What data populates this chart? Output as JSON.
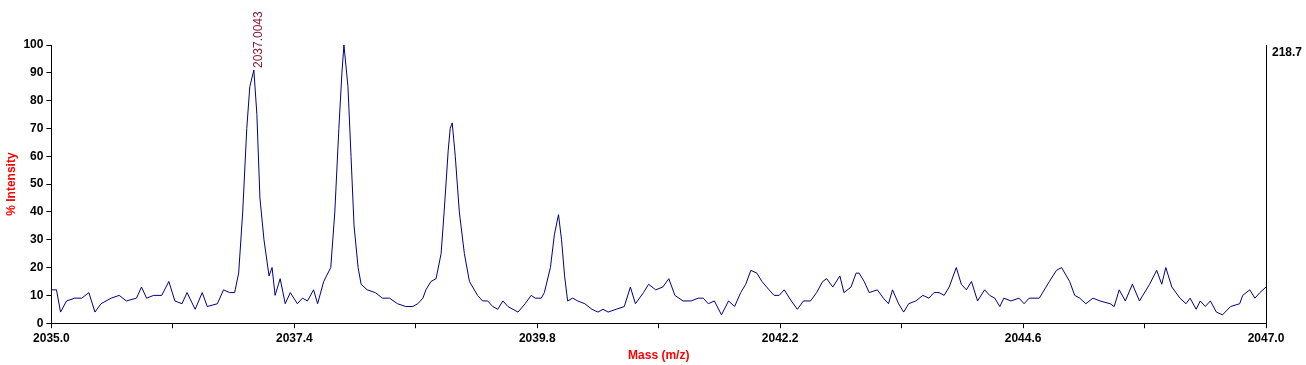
{
  "chart_data": {
    "type": "line",
    "xlabel": "Mass (m/z)",
    "ylabel": "% Intensity",
    "xlim": [
      2035,
      2047
    ],
    "ylim": [
      0,
      100
    ],
    "xticks": [
      {
        "value": 2035,
        "label": "2035.0"
      },
      {
        "value": 2036.2,
        "label": null
      },
      {
        "value": 2037.4,
        "label": "2037.4"
      },
      {
        "value": 2038.6,
        "label": null
      },
      {
        "value": 2039.8,
        "label": "2039.8"
      },
      {
        "value": 2041,
        "label": null
      },
      {
        "value": 2042.2,
        "label": "2042.2"
      },
      {
        "value": 2043.4,
        "label": null
      },
      {
        "value": 2044.6,
        "label": "2044.6"
      },
      {
        "value": 2045.8,
        "label": null
      },
      {
        "value": 2047,
        "label": "2047.0"
      }
    ],
    "yticks": [
      0,
      10,
      20,
      30,
      40,
      50,
      60,
      70,
      80,
      90,
      100
    ],
    "grid": false,
    "legend": false,
    "marker": "none",
    "line_style": "solid",
    "annotations": [
      {
        "text": "2037.0043",
        "x": 2037.0043,
        "y": 91
      },
      "218.7"
    ],
    "series": [
      {
        "color": "#000080",
        "x": [
          2035.0,
          2035.05,
          2035.09,
          2035.15,
          2035.23,
          2035.3,
          2035.37,
          2035.43,
          2035.49,
          2035.59,
          2035.67,
          2035.74,
          2035.84,
          2035.89,
          2035.94,
          2036.01,
          2036.09,
          2036.16,
          2036.22,
          2036.29,
          2036.34,
          2036.42,
          2036.49,
          2036.54,
          2036.64,
          2036.7,
          2036.76,
          2036.81,
          2036.85,
          2036.89,
          2036.93,
          2036.96,
          2037.0,
          2037.03,
          2037.06,
          2037.1,
          2037.15,
          2037.18,
          2037.21,
          2037.26,
          2037.31,
          2037.36,
          2037.43,
          2037.48,
          2037.53,
          2037.59,
          2037.63,
          2037.69,
          2037.76,
          2037.8,
          2037.84,
          2037.87,
          2037.89,
          2037.93,
          2037.96,
          2037.99,
          2038.03,
          2038.06,
          2038.12,
          2038.2,
          2038.27,
          2038.34,
          2038.42,
          2038.5,
          2038.57,
          2038.62,
          2038.67,
          2038.7,
          2038.75,
          2038.8,
          2038.85,
          2038.88,
          2038.92,
          2038.94,
          2038.96,
          2038.99,
          2039.03,
          2039.08,
          2039.13,
          2039.21,
          2039.26,
          2039.31,
          2039.36,
          2039.41,
          2039.46,
          2039.51,
          2039.61,
          2039.68,
          2039.74,
          2039.78,
          2039.84,
          2039.87,
          2039.93,
          2039.97,
          2040.01,
          2040.04,
          2040.07,
          2040.1,
          2040.15,
          2040.2,
          2040.27,
          2040.34,
          2040.4,
          2040.45,
          2040.5,
          2040.58,
          2040.66,
          2040.72,
          2040.77,
          2040.85,
          2040.9,
          2040.97,
          2041.04,
          2041.1,
          2041.16,
          2041.24,
          2041.32,
          2041.39,
          2041.44,
          2041.49,
          2041.55,
          2041.62,
          2041.69,
          2041.75,
          2041.81,
          2041.86,
          2041.91,
          2041.97,
          2042.02,
          2042.09,
          2042.14,
          2042.19,
          2042.24,
          2042.31,
          2042.37,
          2042.43,
          2042.5,
          2042.56,
          2042.62,
          2042.66,
          2042.72,
          2042.79,
          2042.83,
          2042.9,
          2042.95,
          2042.98,
          2043.03,
          2043.08,
          2043.16,
          2043.22,
          2043.27,
          2043.31,
          2043.37,
          2043.42,
          2043.47,
          2043.54,
          2043.61,
          2043.67,
          2043.72,
          2043.77,
          2043.82,
          2043.87,
          2043.94,
          2043.99,
          2044.04,
          2044.09,
          2044.15,
          2044.22,
          2044.27,
          2044.32,
          2044.37,
          2044.41,
          2044.48,
          2044.56,
          2044.61,
          2044.66,
          2044.76,
          2044.86,
          2044.93,
          2044.98,
          2045.06,
          2045.11,
          2045.16,
          2045.22,
          2045.29,
          2045.36,
          2045.46,
          2045.5,
          2045.55,
          2045.61,
          2045.68,
          2045.75,
          2045.85,
          2045.92,
          2045.97,
          2046.01,
          2046.07,
          2046.15,
          2046.21,
          2046.25,
          2046.31,
          2046.35,
          2046.4,
          2046.45,
          2046.51,
          2046.57,
          2046.65,
          2046.74,
          2046.77,
          2046.84,
          2046.89,
          2046.94,
          2047.0
        ],
        "values": [
          12,
          12,
          4,
          8,
          9,
          9,
          11,
          4,
          7,
          9,
          10,
          8,
          9,
          13,
          9,
          10,
          10,
          15,
          8,
          7,
          11,
          5,
          11,
          6,
          7,
          12,
          11,
          11,
          18,
          40,
          70,
          85,
          91,
          75,
          45,
          30,
          17,
          20,
          10,
          16,
          7,
          11,
          7,
          9,
          8,
          12,
          7,
          15,
          20,
          40,
          70,
          90,
          100,
          85,
          60,
          35,
          20,
          14,
          12,
          11,
          9,
          9,
          7,
          6,
          6,
          7,
          9,
          12,
          15,
          16,
          25,
          40,
          62,
          70,
          72,
          60,
          40,
          25,
          15,
          10,
          8,
          8,
          6,
          5,
          8,
          6,
          4,
          7,
          10,
          9,
          9,
          11,
          20,
          32,
          39,
          30,
          17,
          8,
          9,
          8,
          7,
          5,
          4,
          5,
          4,
          5,
          6,
          13,
          7,
          11,
          14,
          12,
          13,
          16,
          10,
          8,
          8,
          9,
          9,
          7,
          8,
          3,
          8,
          6,
          11,
          14,
          19,
          18,
          15,
          12,
          10,
          10,
          12,
          8,
          5,
          8,
          8,
          11,
          15,
          16,
          13,
          17,
          11,
          13,
          18,
          18,
          15,
          11,
          12,
          9,
          7,
          12,
          7,
          4,
          7,
          8,
          10,
          9,
          11,
          11,
          10,
          13,
          20,
          14,
          12,
          15,
          8,
          12,
          10,
          9,
          6,
          9,
          8,
          9,
          7,
          9,
          9,
          15,
          19,
          20,
          15,
          10,
          9,
          7,
          9,
          8,
          7,
          6,
          12,
          8,
          14,
          8,
          14,
          19,
          14,
          20,
          13,
          9,
          7,
          9,
          5,
          8,
          6,
          8,
          4,
          3,
          6,
          7,
          10,
          12,
          9,
          11,
          13
        ]
      }
    ]
  }
}
